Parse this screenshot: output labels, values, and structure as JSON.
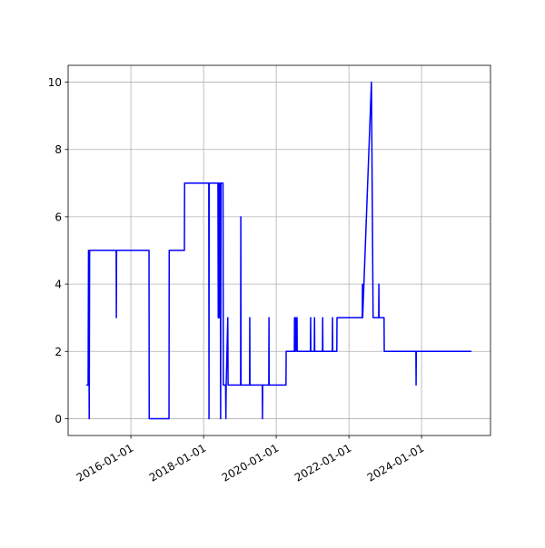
{
  "chart_data": {
    "type": "line",
    "x": [
      "2014-10-10",
      "2014-10-28",
      "2014-11-01",
      "2014-11-08",
      "2014-11-12",
      "2015-08-06",
      "2015-08-08",
      "2015-08-10",
      "2016-07-01",
      "2016-07-03",
      "2017-01-18",
      "2017-01-20",
      "2017-06-22",
      "2017-06-24",
      "2018-02-22",
      "2018-02-24",
      "2018-02-26",
      "2018-05-25",
      "2018-05-28",
      "2018-06-01",
      "2018-06-05",
      "2018-06-09",
      "2018-06-13",
      "2018-06-17",
      "2018-06-21",
      "2018-06-25",
      "2018-07-15",
      "2018-07-18",
      "2018-08-10",
      "2018-08-13",
      "2018-08-16",
      "2018-09-01",
      "2018-09-04",
      "2019-01-08",
      "2019-01-10",
      "2019-01-12",
      "2019-04-08",
      "2019-04-10",
      "2019-04-12",
      "2019-08-14",
      "2019-08-16",
      "2019-08-18",
      "2019-10-18",
      "2019-10-20",
      "2019-10-22",
      "2020-04-08",
      "2020-04-10",
      "2020-07-01",
      "2020-07-03",
      "2020-07-05",
      "2020-07-15",
      "2020-07-17",
      "2020-07-28",
      "2020-07-30",
      "2020-12-10",
      "2020-12-12",
      "2020-12-14",
      "2021-01-18",
      "2021-01-20",
      "2021-01-22",
      "2021-04-10",
      "2021-04-12",
      "2021-04-14",
      "2021-07-18",
      "2021-07-20",
      "2021-07-22",
      "2021-09-01",
      "2021-09-03",
      "2022-05-15",
      "2022-05-17",
      "2022-05-19",
      "2022-08-15",
      "2022-09-01",
      "2022-10-27",
      "2022-10-29",
      "2022-10-31",
      "2022-12-20",
      "2022-12-22",
      "2023-11-05",
      "2023-11-07",
      "2023-11-09",
      "2025-05-17"
    ],
    "series": [
      {
        "color": "#0000ff",
        "values": [
          1,
          1,
          5,
          0,
          5,
          5,
          3,
          5,
          5,
          0,
          0,
          5,
          5,
          7,
          7,
          0,
          7,
          7,
          3,
          7,
          3,
          7,
          3,
          7,
          0,
          7,
          7,
          1,
          1,
          0,
          1,
          3,
          1,
          1,
          6,
          1,
          1,
          3,
          1,
          1,
          0,
          1,
          1,
          3,
          1,
          1,
          2,
          2,
          3,
          2,
          3,
          2,
          3,
          2,
          2,
          3,
          2,
          2,
          3,
          2,
          2,
          3,
          2,
          2,
          3,
          2,
          2,
          3,
          3,
          4,
          3,
          10,
          3,
          3,
          4,
          3,
          3,
          2,
          2,
          1,
          2,
          2
        ]
      }
    ],
    "xlim": [
      "2014-04-10",
      "2025-11-24"
    ],
    "xticks": [
      "2016-01-01",
      "2018-01-01",
      "2020-01-01",
      "2022-01-01",
      "2024-01-01"
    ],
    "ylim": [
      -0.5,
      10.5
    ],
    "yticks": [
      0,
      2,
      4,
      6,
      8,
      10
    ],
    "grid": true
  }
}
